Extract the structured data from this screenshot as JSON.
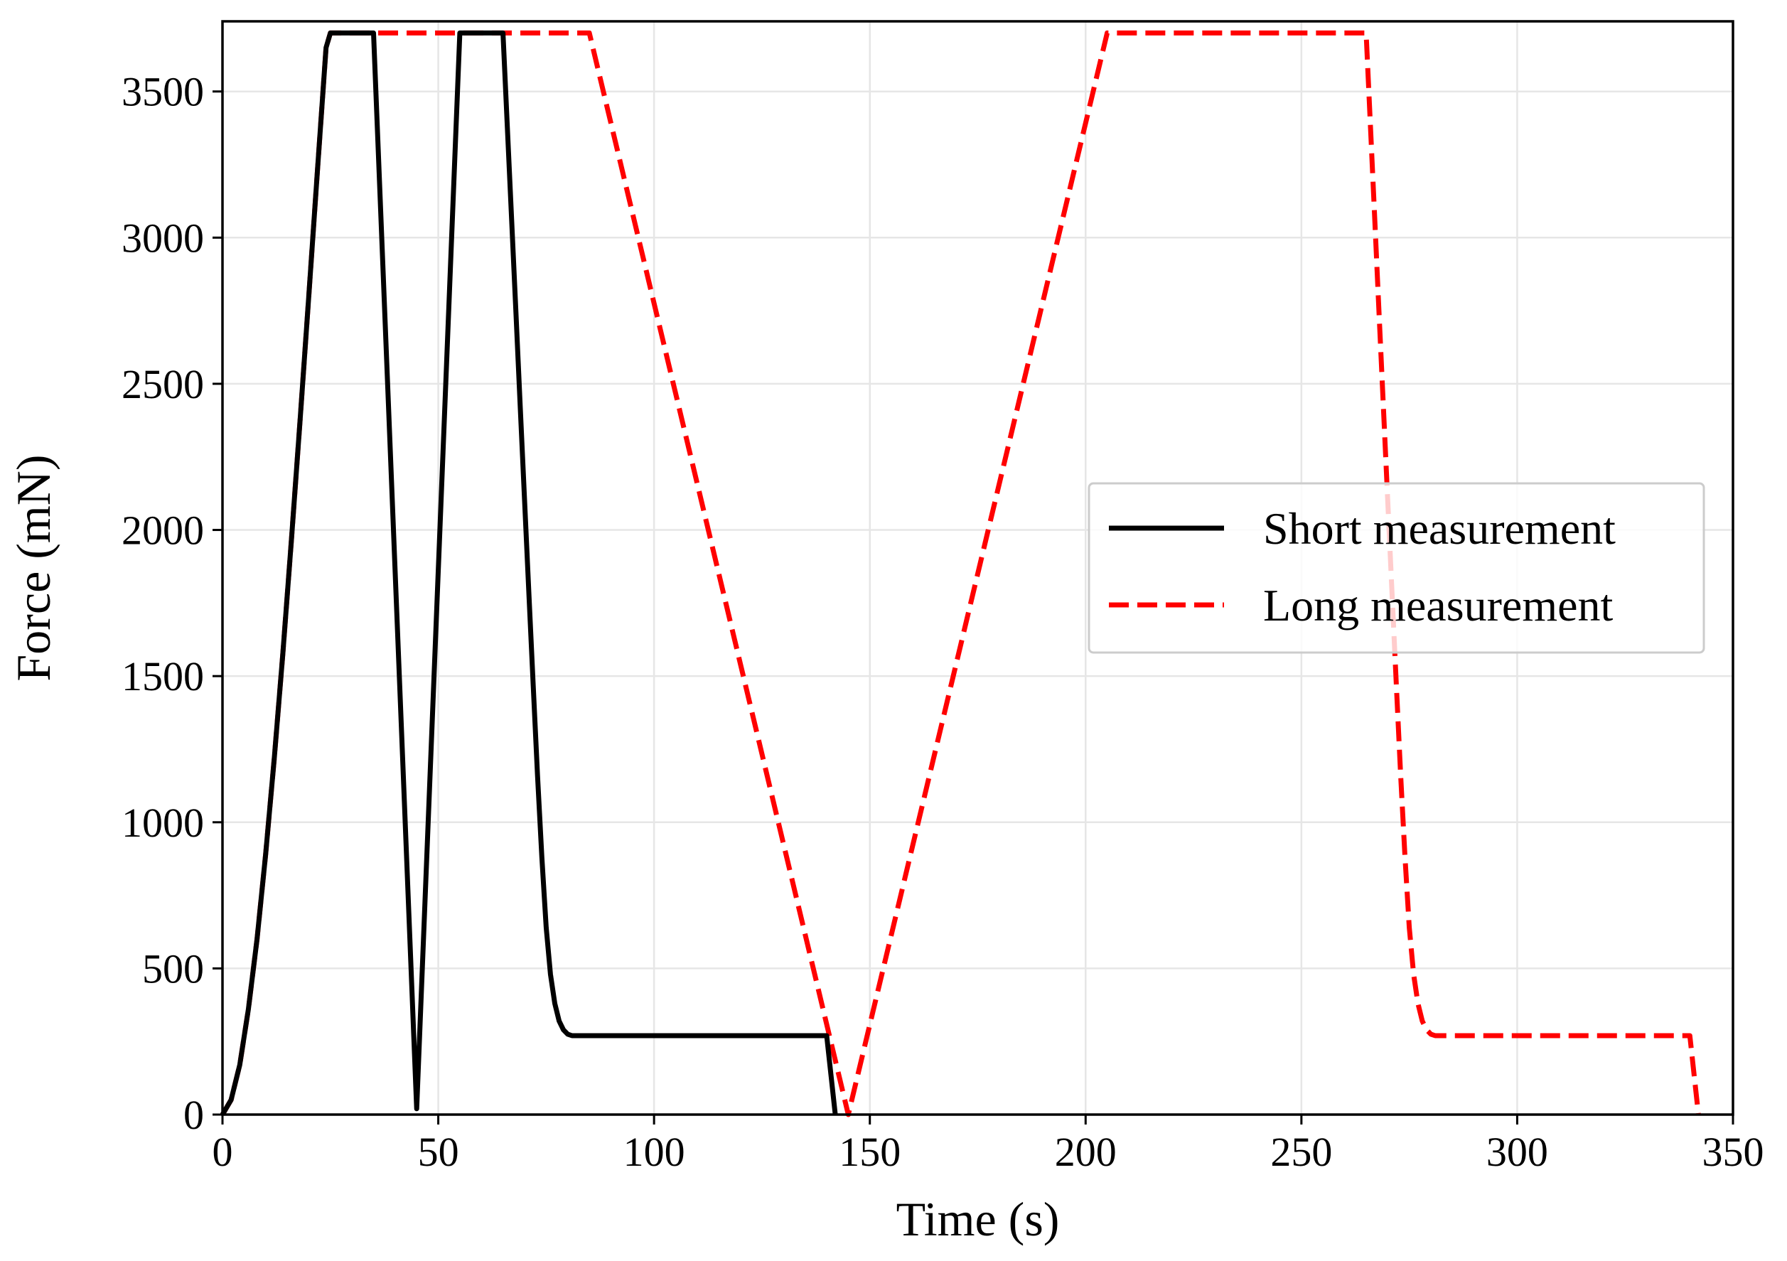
{
  "chart_data": {
    "type": "line",
    "title": "",
    "xlabel": "Time (s)",
    "ylabel": "Force (mN)",
    "xlim": [
      0,
      350
    ],
    "ylim": [
      0,
      3700
    ],
    "xticks": [
      0,
      50,
      100,
      150,
      200,
      250,
      300,
      350
    ],
    "yticks": [
      0,
      500,
      1000,
      1500,
      2000,
      2500,
      3000,
      3500
    ],
    "grid": true,
    "legend_position": "center-right",
    "series": [
      {
        "name": "Short measurement",
        "color": "#000000",
        "style": "solid",
        "x": [
          0,
          2,
          4,
          6,
          8,
          10,
          12,
          14,
          16,
          18,
          20,
          22,
          24,
          25,
          35,
          45,
          55,
          65,
          66,
          67,
          68,
          69,
          70,
          71,
          72,
          73,
          74,
          75,
          76,
          77,
          78,
          79,
          80,
          81,
          82,
          140,
          142
        ],
        "y": [
          0,
          50,
          170,
          360,
          600,
          890,
          1220,
          1580,
          1970,
          2380,
          2800,
          3230,
          3650,
          3700,
          3700,
          20,
          3700,
          3700,
          3380,
          3060,
          2740,
          2420,
          2100,
          1780,
          1470,
          1160,
          880,
          640,
          480,
          380,
          320,
          290,
          275,
          270,
          270,
          270,
          0
        ]
      },
      {
        "name": "Long measurement",
        "color": "#ff0000",
        "style": "dashed",
        "x": [
          0,
          2,
          4,
          6,
          8,
          10,
          12,
          14,
          16,
          18,
          20,
          22,
          24,
          25,
          85,
          145,
          205,
          265,
          266,
          267,
          268,
          269,
          270,
          271,
          272,
          273,
          274,
          275,
          276,
          277,
          278,
          279,
          280,
          281,
          282,
          340,
          342
        ],
        "y": [
          0,
          50,
          170,
          360,
          600,
          890,
          1220,
          1580,
          1970,
          2380,
          2800,
          3230,
          3650,
          3700,
          3700,
          0,
          3700,
          3700,
          3380,
          3060,
          2740,
          2420,
          2100,
          1780,
          1470,
          1160,
          880,
          640,
          480,
          380,
          320,
          290,
          275,
          270,
          270,
          270,
          0
        ]
      }
    ]
  }
}
